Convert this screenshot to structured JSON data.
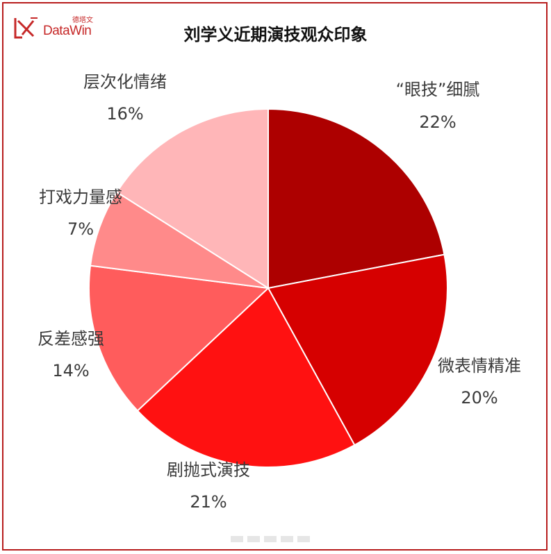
{
  "logo": {
    "brand": "DataWin",
    "brand_cn": "德塔文",
    "icon": "datawin-logo-icon"
  },
  "chart_data": {
    "type": "pie",
    "title": "刘学义近期演技观众印象",
    "start_angle_deg": 0,
    "direction": "clockwise",
    "slices": [
      {
        "label": "“眼技”细腻",
        "value": 22,
        "value_label": "22%",
        "color": "#ad0000"
      },
      {
        "label": "微表情精准",
        "value": 20,
        "value_label": "20%",
        "color": "#d60000"
      },
      {
        "label": "剧抛式演技",
        "value": 21,
        "value_label": "21%",
        "color": "#ff1111"
      },
      {
        "label": "反差感强",
        "value": 14,
        "value_label": "14%",
        "color": "#ff5c5c"
      },
      {
        "label": "打戏力量感",
        "value": 7,
        "value_label": "7%",
        "color": "#ff8a8a"
      },
      {
        "label": "层次化情绪",
        "value": 16,
        "value_label": "16%",
        "color": "#ffb6b8"
      }
    ]
  }
}
